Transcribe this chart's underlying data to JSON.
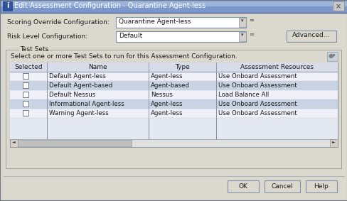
{
  "title": "Edit Assessment Configuration - Quarantine Agent-less",
  "bg_color": "#dbd8ce",
  "dialog_bg": "#dbd8ce",
  "title_bar_bg": "#6b7fb5",
  "title_bar_text_color": "#ffffff",
  "label_scoring": "Scoring Override Configuration:",
  "label_risk": "Risk Level Configuration:",
  "dropdown_scoring": "Quarantine Agent-less",
  "dropdown_risk": "Default",
  "btn_advanced": "Advanced...",
  "test_sets_label": "Test Sets",
  "test_sets_desc": "Select one or more Test Sets to run for this Assessment Configuration.",
  "table_headers": [
    "Selected",
    "Name",
    "Type",
    "Assessment Resources"
  ],
  "table_rows": [
    [
      "",
      "Default Agent-less",
      "Agent-less",
      "Use Onboard Assessment"
    ],
    [
      "",
      "Default Agent-based",
      "Agent-based",
      "Use Onboard Assessment"
    ],
    [
      "",
      "Default Nessus",
      "Nessus",
      "Load Balance All"
    ],
    [
      "",
      "Informational Agent-less",
      "Agent-less",
      "Use Onboard Assessment"
    ],
    [
      "",
      "Warning Agent-less",
      "Agent-less",
      "Use Onboard Assessment"
    ]
  ],
  "row_colors": [
    "#f0f0f8",
    "#c8d4e4",
    "#f0f0f8",
    "#c8d4e4",
    "#f0f0f8"
  ],
  "btn_ok": "OK",
  "btn_cancel": "Cancel",
  "btn_help": "Help",
  "header_bg": "#d8dce8",
  "dropdown_bg": "#ffffff",
  "btn_bg": "#dbd8ce",
  "scrollbar_bg": "#d8d8d8",
  "scrollbar_thumb": "#b8b8b8",
  "empty_row_bg": "#e4e8f0",
  "groupbox_line": "#a0a0a0",
  "table_alt1": "#f0f0f8",
  "table_alt2": "#c8d4e4"
}
